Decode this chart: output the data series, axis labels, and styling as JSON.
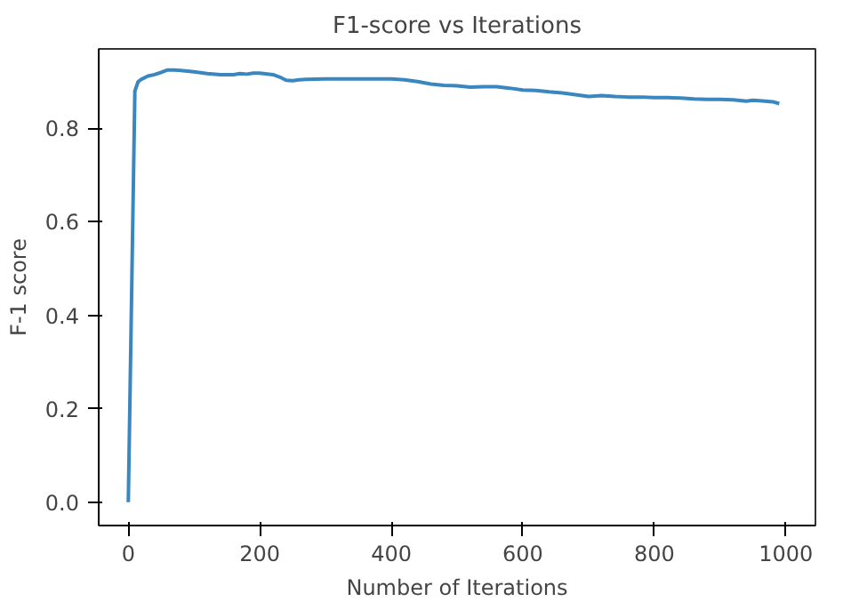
{
  "chart_data": {
    "type": "line",
    "title": "F1-score vs Iterations",
    "xlabel": "Number of Iterations",
    "ylabel": "F-1 score",
    "series": [
      {
        "color": "#3a87c0",
        "x": [
          0,
          10,
          15,
          20,
          30,
          40,
          50,
          60,
          70,
          80,
          100,
          120,
          140,
          160,
          170,
          180,
          190,
          200,
          220,
          230,
          240,
          250,
          260,
          270,
          300,
          350,
          400,
          420,
          440,
          460,
          480,
          500,
          520,
          540,
          560,
          580,
          600,
          620,
          640,
          660,
          680,
          700,
          720,
          740,
          760,
          780,
          800,
          820,
          840,
          860,
          880,
          900,
          920,
          940,
          950,
          960,
          980,
          990
        ],
        "values": [
          0,
          0.88,
          0.9,
          0.905,
          0.912,
          0.915,
          0.92,
          0.925,
          0.925,
          0.924,
          0.921,
          0.917,
          0.915,
          0.915,
          0.917,
          0.916,
          0.918,
          0.918,
          0.915,
          0.91,
          0.903,
          0.902,
          0.904,
          0.905,
          0.906,
          0.906,
          0.906,
          0.904,
          0.9,
          0.895,
          0.892,
          0.891,
          0.888,
          0.889,
          0.889,
          0.886,
          0.882,
          0.881,
          0.878,
          0.876,
          0.872,
          0.868,
          0.87,
          0.868,
          0.867,
          0.867,
          0.866,
          0.866,
          0.865,
          0.863,
          0.862,
          0.862,
          0.861,
          0.858,
          0.86,
          0.859,
          0.857,
          0.853
        ]
      }
    ],
    "xlim": [
      -45,
      1045
    ],
    "ylim": [
      -0.05,
      0.97
    ],
    "xticks": [
      0,
      200,
      400,
      600,
      800,
      1000
    ],
    "yticks": [
      {
        "value": 0,
        "label": "0.0"
      },
      {
        "value": 0.2,
        "label": "0.2"
      },
      {
        "value": 0.4,
        "label": "0.4"
      },
      {
        "value": 0.6,
        "label": "0.6"
      },
      {
        "value": 0.8,
        "label": "0.8"
      }
    ],
    "grid": false
  }
}
